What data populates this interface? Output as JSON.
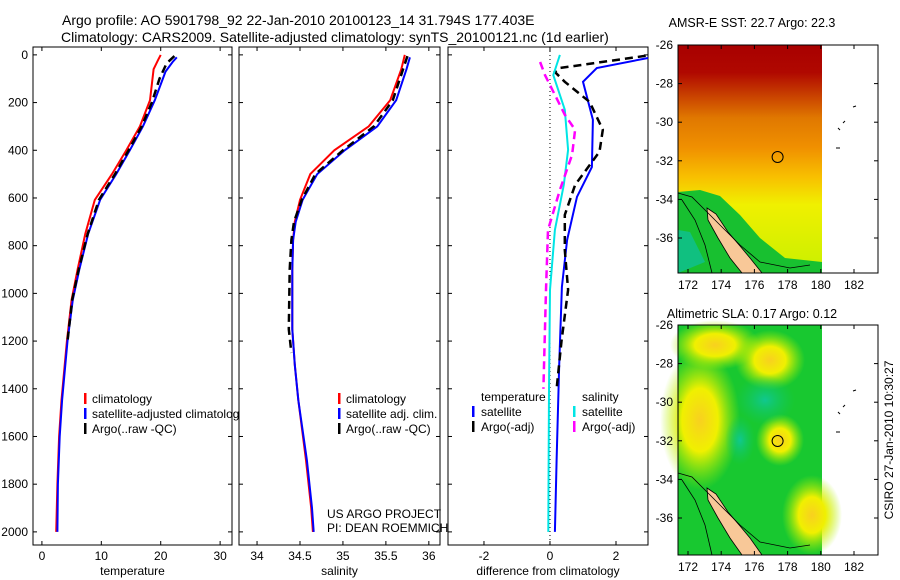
{
  "header": {
    "title_line1": "Argo profile: AO 5901798_92 22-Jan-2010 20100123_14 31.794S 177.403E",
    "title_line2": "Climatology: CARS2009. Satellite-adjusted climatology: synTS_20100121.nc (1d earlier)"
  },
  "credit": {
    "line1": "US ARGO PROJECT",
    "line2": "PI: DEAN ROEMMICH"
  },
  "stamp": "CSIRO 27-Jan-2010 10:30:27",
  "colors": {
    "climatology": "#ff0000",
    "satellite": "#0000ff",
    "argo": "#000000",
    "sal_satellite": "#00e5e5",
    "sal_argo": "#ff00ff"
  },
  "chart_data": [
    {
      "type": "line",
      "xlabel": "temperature",
      "ylabel": "",
      "xlim": [
        -1.5,
        32
      ],
      "ylim": [
        2055,
        -33
      ],
      "xticks": [
        "0",
        "10",
        "20",
        "30"
      ],
      "yticks": [
        "0",
        "200",
        "400",
        "600",
        "800",
        "1000",
        "1200",
        "1400",
        "1600",
        "1800",
        "2000"
      ],
      "legend": [
        "climatology",
        "satellite-adjusted climatology",
        "Argo(..raw -QC)"
      ],
      "legend_position": "lower-right",
      "series": [
        {
          "name": "climatology",
          "color": "#ff0000",
          "dash": false,
          "points": [
            [
              20.0,
              0
            ],
            [
              19.6,
              20
            ],
            [
              18.8,
              60
            ],
            [
              18.2,
              190
            ],
            [
              16.5,
              300
            ],
            [
              14.2,
              400
            ],
            [
              11.8,
              500
            ],
            [
              8.9,
              608
            ],
            [
              7.3,
              750
            ],
            [
              6.0,
              900
            ],
            [
              5.0,
              1027
            ],
            [
              4.2,
              1200
            ],
            [
              3.3,
              1447
            ],
            [
              2.9,
              1600
            ],
            [
              2.6,
              1800
            ],
            [
              2.4,
              2000
            ]
          ]
        },
        {
          "name": "satellite-adjusted climatology",
          "color": "#0000ff",
          "dash": false,
          "points": [
            [
              22.7,
              10
            ],
            [
              22.0,
              30
            ],
            [
              20.8,
              70
            ],
            [
              19.0,
              190
            ],
            [
              17.0,
              300
            ],
            [
              14.8,
              400
            ],
            [
              12.5,
              500
            ],
            [
              9.8,
              608
            ],
            [
              7.8,
              750
            ],
            [
              6.3,
              900
            ],
            [
              5.2,
              1027
            ],
            [
              4.3,
              1200
            ],
            [
              3.4,
              1447
            ],
            [
              3.0,
              1600
            ],
            [
              2.7,
              1800
            ],
            [
              2.6,
              2000
            ]
          ]
        },
        {
          "name": "Argo(..raw -QC)",
          "color": "#000000",
          "dash": true,
          "points": [
            [
              22.3,
              5
            ],
            [
              21.0,
              35
            ],
            [
              19.8,
              100
            ],
            [
              18.5,
              200
            ],
            [
              16.8,
              300
            ],
            [
              14.6,
              400
            ],
            [
              12.3,
              500
            ],
            [
              9.6,
              608
            ],
            [
              7.7,
              750
            ],
            [
              6.2,
              900
            ],
            [
              5.1,
              1027
            ],
            [
              4.3,
              1200
            ]
          ]
        }
      ]
    },
    {
      "type": "line",
      "xlabel": "salinity",
      "xlim": [
        33.79,
        36.13
      ],
      "ylim": [
        2055,
        -33
      ],
      "xticks": [
        "34",
        "34.5",
        "35",
        "35.5",
        "36"
      ],
      "legend": [
        "climatology",
        "satellite adj. clim.",
        "Argo(..raw -QC)"
      ],
      "legend_position": "lower-right",
      "series": [
        {
          "name": "climatology",
          "color": "#ff0000",
          "dash": false,
          "points": [
            [
              35.72,
              0
            ],
            [
              35.68,
              60
            ],
            [
              35.55,
              190
            ],
            [
              35.3,
              300
            ],
            [
              34.9,
              400
            ],
            [
              34.62,
              500
            ],
            [
              34.5,
              608
            ],
            [
              34.44,
              700
            ],
            [
              34.42,
              776
            ],
            [
              34.41,
              900
            ],
            [
              34.41,
              1150
            ],
            [
              34.44,
              1300
            ],
            [
              34.48,
              1447
            ],
            [
              34.57,
              1700
            ],
            [
              34.63,
              1900
            ],
            [
              34.65,
              2000
            ]
          ]
        },
        {
          "name": "satellite adj. clim.",
          "color": "#0000ff",
          "dash": false,
          "points": [
            [
              35.78,
              10
            ],
            [
              35.74,
              60
            ],
            [
              35.62,
              190
            ],
            [
              35.4,
              300
            ],
            [
              35.02,
              400
            ],
            [
              34.7,
              500
            ],
            [
              34.53,
              608
            ],
            [
              34.45,
              700
            ],
            [
              34.42,
              776
            ],
            [
              34.41,
              900
            ],
            [
              34.41,
              1150
            ],
            [
              34.44,
              1300
            ],
            [
              34.48,
              1447
            ],
            [
              34.58,
              1700
            ],
            [
              34.64,
              1900
            ],
            [
              34.66,
              2000
            ]
          ]
        },
        {
          "name": "Argo(..raw -QC)",
          "color": "#000000",
          "dash": true,
          "points": [
            [
              35.75,
              5
            ],
            [
              35.7,
              60
            ],
            [
              35.58,
              190
            ],
            [
              35.36,
              300
            ],
            [
              35.0,
              400
            ],
            [
              34.68,
              500
            ],
            [
              34.52,
              608
            ],
            [
              34.43,
              700
            ],
            [
              34.4,
              776
            ],
            [
              34.38,
              900
            ],
            [
              34.37,
              1150
            ],
            [
              34.4,
              1250
            ]
          ]
        }
      ]
    },
    {
      "type": "line",
      "xlabel": "difference from climatology",
      "xlim": [
        -3.09,
        2.97
      ],
      "ylim": [
        2055,
        -33
      ],
      "xticks": [
        "-2",
        "0",
        "2"
      ],
      "legend_headers": [
        "temperature",
        "salinity"
      ],
      "legend": [
        "satellite",
        "Argo(-adj)",
        "satellite",
        "Argo(-adj)"
      ],
      "legend_position": "lower-center",
      "series": [
        {
          "name": "temperature satellite",
          "color": "#0000ff",
          "dash": false,
          "points": [
            [
              2.97,
              13
            ],
            [
              1.42,
              55
            ],
            [
              1.0,
              113
            ],
            [
              1.3,
              272
            ],
            [
              1.27,
              470
            ],
            [
              0.82,
              595
            ],
            [
              0.52,
              776
            ],
            [
              0.36,
              973
            ],
            [
              0.28,
              1300
            ],
            [
              0.2,
              1700
            ],
            [
              0.15,
              2000
            ]
          ]
        },
        {
          "name": "temperature Argo(-adj)",
          "color": "#000000",
          "dash": true,
          "points": [
            [
              2.9,
              4
            ],
            [
              0.3,
              55
            ],
            [
              0.15,
              72
            ],
            [
              0.45,
              113
            ],
            [
              1.2,
              197
            ],
            [
              1.6,
              314
            ],
            [
              1.5,
              406
            ],
            [
              0.76,
              545
            ],
            [
              0.45,
              671
            ],
            [
              0.45,
              818
            ],
            [
              0.55,
              985
            ],
            [
              0.35,
              1200
            ],
            [
              0.2,
              1400
            ]
          ]
        },
        {
          "name": "salinity satellite",
          "color": "#00e5e5",
          "dash": false,
          "points": [
            [
              0.3,
              0
            ],
            [
              0.1,
              85
            ],
            [
              0.45,
              230
            ],
            [
              0.55,
              398
            ],
            [
              0.42,
              545
            ],
            [
              0.15,
              734
            ],
            [
              0.0,
              985
            ],
            [
              -0.03,
              1400
            ],
            [
              -0.05,
              2000
            ]
          ]
        },
        {
          "name": "salinity Argo(-adj)",
          "color": "#ff00ff",
          "dash": true,
          "points": [
            [
              -0.3,
              30
            ],
            [
              -0.15,
              85
            ],
            [
              0.45,
              251
            ],
            [
              0.76,
              314
            ],
            [
              0.67,
              419
            ],
            [
              0.3,
              566
            ],
            [
              -0.06,
              734
            ],
            [
              -0.12,
              985
            ],
            [
              -0.2,
              1400
            ]
          ]
        }
      ]
    }
  ],
  "maps": [
    {
      "title": "AMSR-E SST: 22.7 Argo: 22.3",
      "xticks": [
        "172",
        "174",
        "176",
        "178",
        "180",
        "182"
      ],
      "yticks": [
        "-26",
        "-28",
        "-30",
        "-32",
        "-34",
        "-36"
      ],
      "argo_position": [
        177.4,
        -31.8
      ]
    },
    {
      "title": "Altimetric SLA: 0.17 Argo: 0.12",
      "xticks": [
        "172",
        "174",
        "176",
        "178",
        "180",
        "182"
      ],
      "yticks": [
        "-26",
        "-28",
        "-30",
        "-32",
        "-34",
        "-36"
      ],
      "argo_position": [
        177.4,
        -31.8
      ]
    }
  ]
}
